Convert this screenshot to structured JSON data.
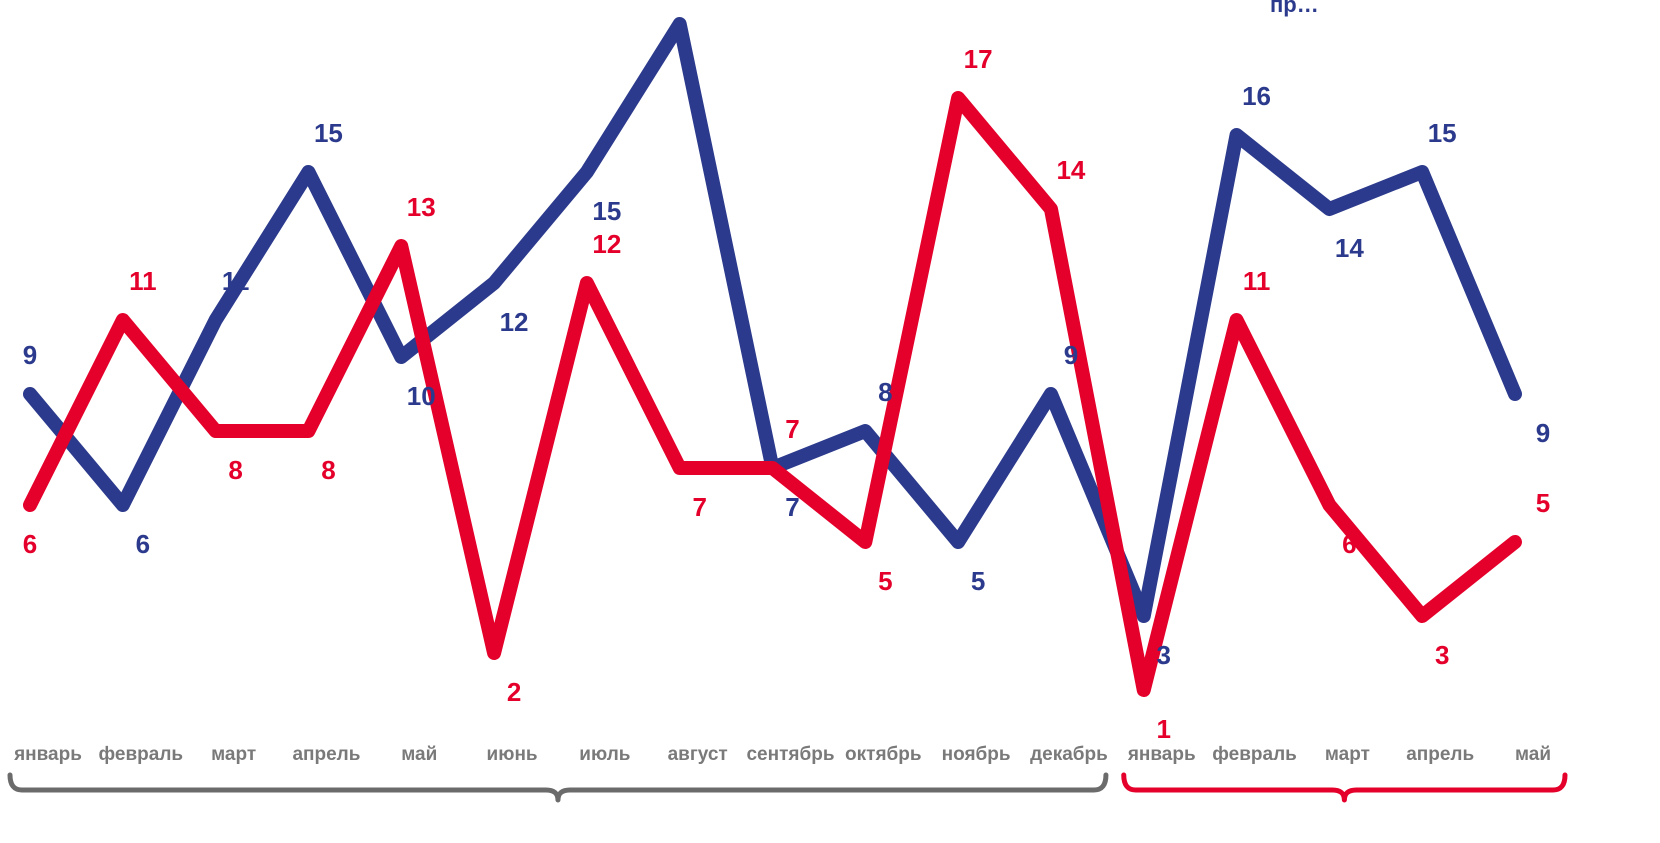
{
  "chart_data": {
    "type": "line",
    "categories": [
      "январь",
      "февраль",
      "март",
      "апрель",
      "май",
      "июнь",
      "июль",
      "август",
      "сентябрь",
      "октябрь",
      "ноябрь",
      "декабрь",
      "январь",
      "февраль",
      "март",
      "апрель",
      "май"
    ],
    "series": [
      {
        "color": "#2b3a8c",
        "values": [
          9,
          6,
          11,
          15,
          10,
          12,
          15,
          19,
          7,
          8,
          5,
          9,
          3,
          16,
          14,
          15,
          9
        ]
      },
      {
        "color": "#e4002b",
        "values": [
          6,
          11,
          8,
          8,
          13,
          2,
          12,
          7,
          7,
          5,
          17,
          14,
          1,
          11,
          6,
          3,
          5
        ]
      }
    ],
    "ylim": [
      0,
      20
    ],
    "grid": false,
    "brackets": [
      {
        "from": 0,
        "to": 11,
        "color": "#6b6b6b"
      },
      {
        "from": 12,
        "to": 16,
        "color": "#e4002b"
      }
    ]
  },
  "legend": {
    "partial_text": "пр…"
  }
}
